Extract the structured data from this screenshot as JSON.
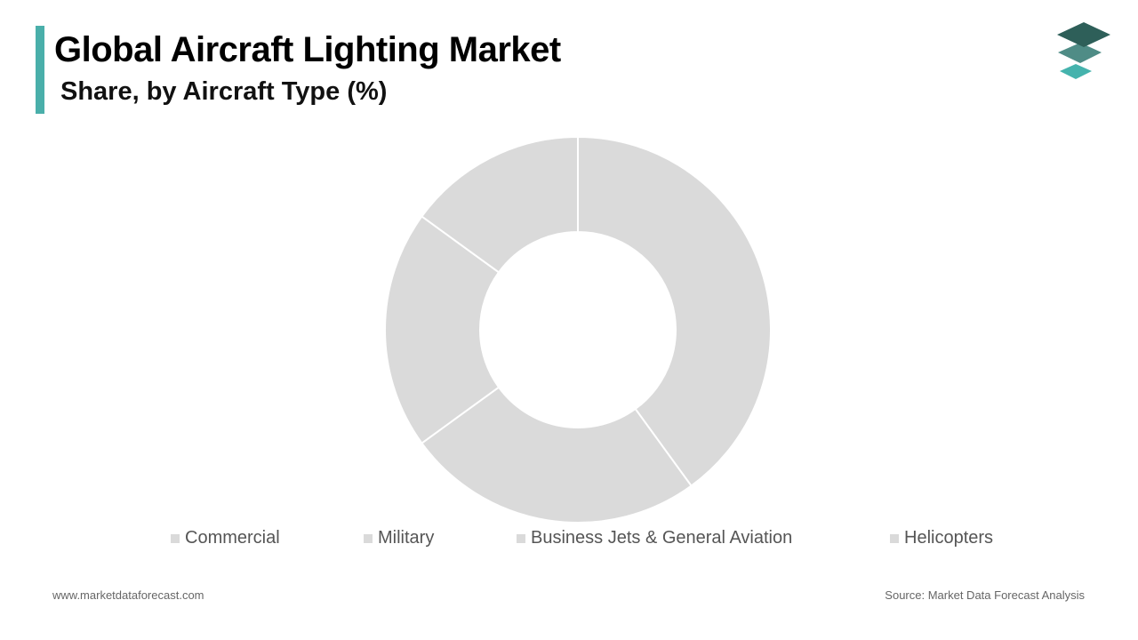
{
  "header": {
    "title": "Global Aircraft Lighting Market",
    "subtitle": "Share, by Aircraft Type (%)"
  },
  "colors": {
    "accent": "#4aafaa",
    "slice": "#dadada",
    "slice_border": "#ffffff",
    "legend_swatch": "#dadada",
    "logo_top": "#2e5f59",
    "logo_mid": "#4f8c86",
    "logo_bottom": "#45b3ad"
  },
  "icons": {
    "logo": "stacked-layers-logo-icon"
  },
  "chart_data": {
    "type": "pie",
    "donut": true,
    "categories": [
      "Commercial",
      "Military",
      "Business Jets & General Aviation",
      "Helicopters"
    ],
    "values": [
      40,
      25,
      20,
      15
    ],
    "legend_position": "bottom"
  },
  "footer": {
    "website": "www.marketdataforecast.com",
    "source": "Source: Market Data Forecast Analysis"
  }
}
